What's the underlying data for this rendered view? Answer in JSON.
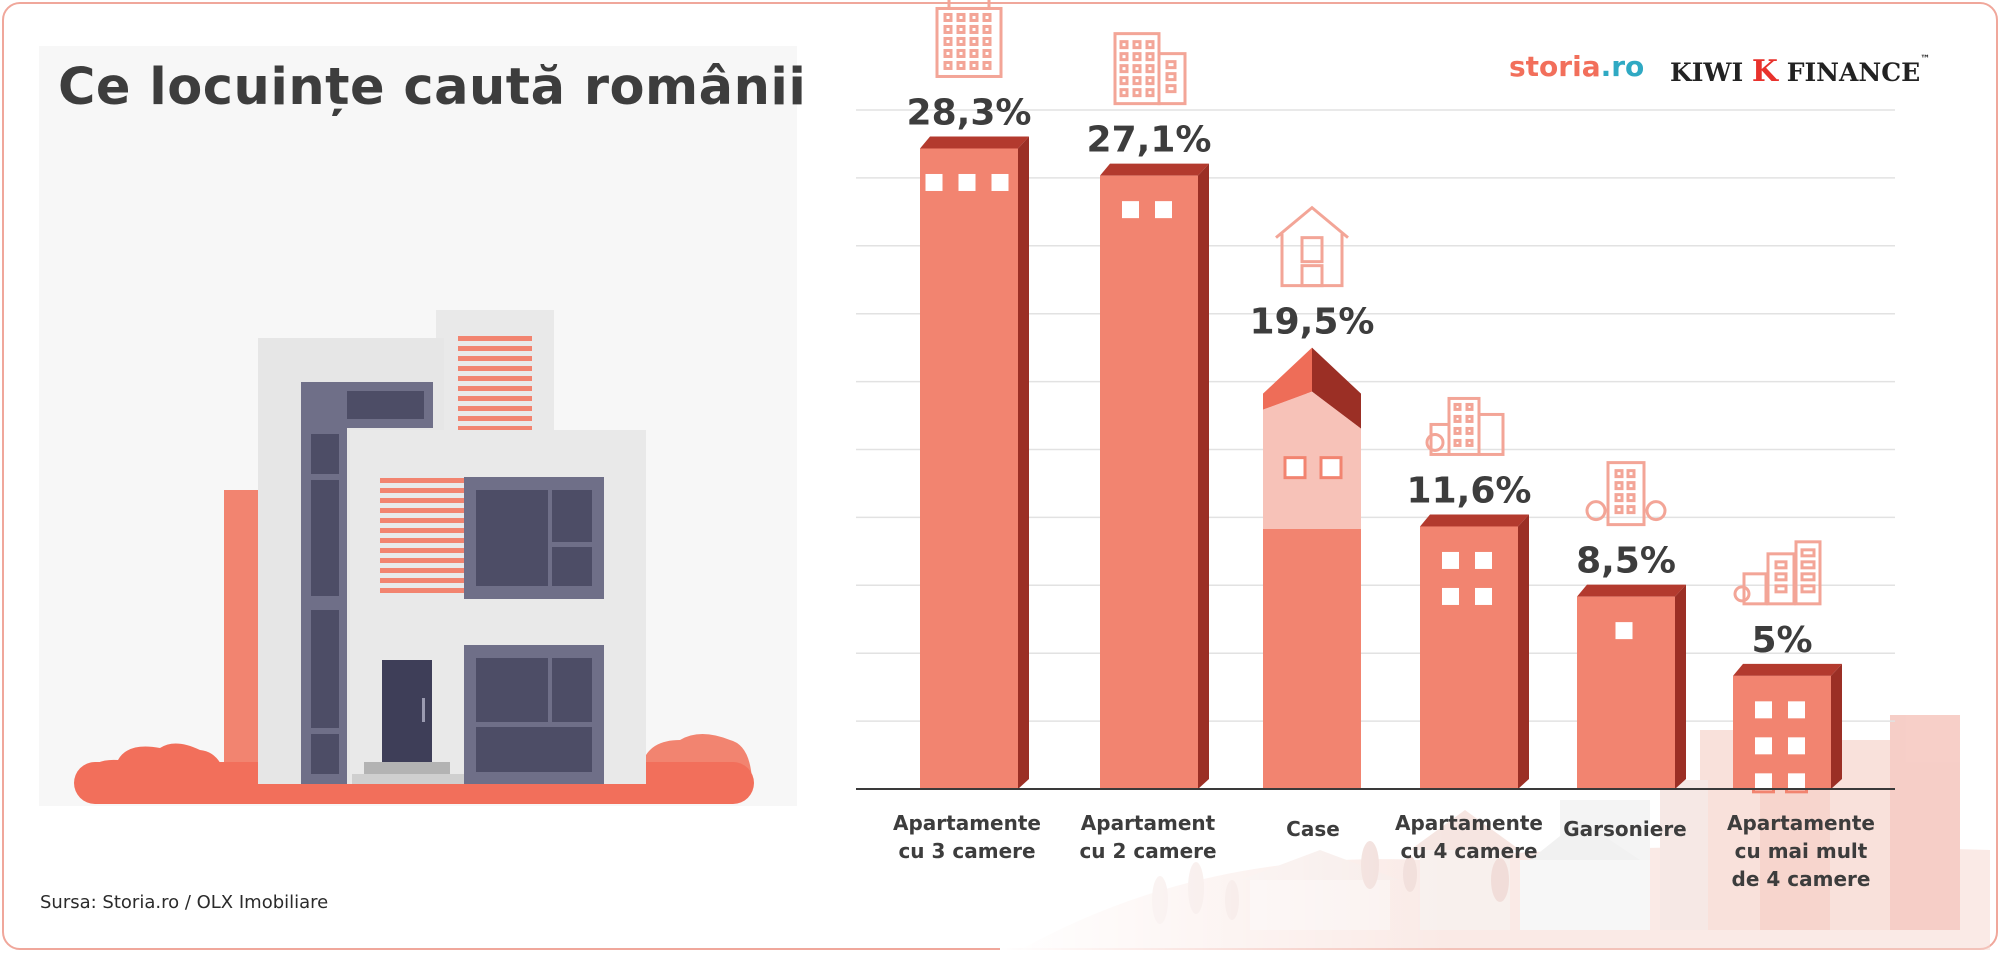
{
  "header": {
    "title": "Ce locuințe caută românii",
    "source": "Sursa: Storia.ro / OLX Imobiliare"
  },
  "logos": {
    "storia_main": "storia",
    "storia_tld": ".ro",
    "kiwi_word": "KIWI",
    "kiwi_k": "K",
    "kiwi_finance": "FINANCE",
    "kiwi_tm": "™"
  },
  "colors": {
    "bar_front": "#f28470",
    "bar_side": "#9b2f25",
    "bar_top": "#b33a2e",
    "icon_stroke": "#f3a597",
    "text": "#3d3d3d",
    "grid": "#e2e2e2",
    "axis": "#3a3a3a"
  },
  "chart_data": {
    "type": "bar",
    "title": "Ce locuințe caută românii",
    "categories": [
      "Apartamente cu 3 camere",
      "Apartament cu 2 camere",
      "Case",
      "Apartamente cu 4 camere",
      "Garsoniere",
      "Apartamente cu mai mult de 4 camere"
    ],
    "category_label_lines": [
      [
        "Apartamente",
        "cu 3 camere"
      ],
      [
        "Apartament",
        "cu 2 camere"
      ],
      [
        "Case"
      ],
      [
        "Apartamente",
        "cu 4 camere"
      ],
      [
        "Garsoniere"
      ],
      [
        "Apartamente",
        "cu mai mult",
        "de 4 camere"
      ]
    ],
    "values": [
      28.3,
      27.1,
      19.5,
      11.6,
      8.5,
      5
    ],
    "value_labels": [
      "28,3%",
      "27,1%",
      "19,5%",
      "11,6%",
      "8,5%",
      "5%"
    ],
    "unit": "%",
    "icons": [
      "office-tower-icon",
      "apartment-block-icon",
      "house-icon",
      "apartment-cluster-icon",
      "apartment-with-trees-icon",
      "city-skyline-icon"
    ],
    "ylim": [
      0,
      30
    ],
    "grid": true,
    "legend": "none"
  }
}
